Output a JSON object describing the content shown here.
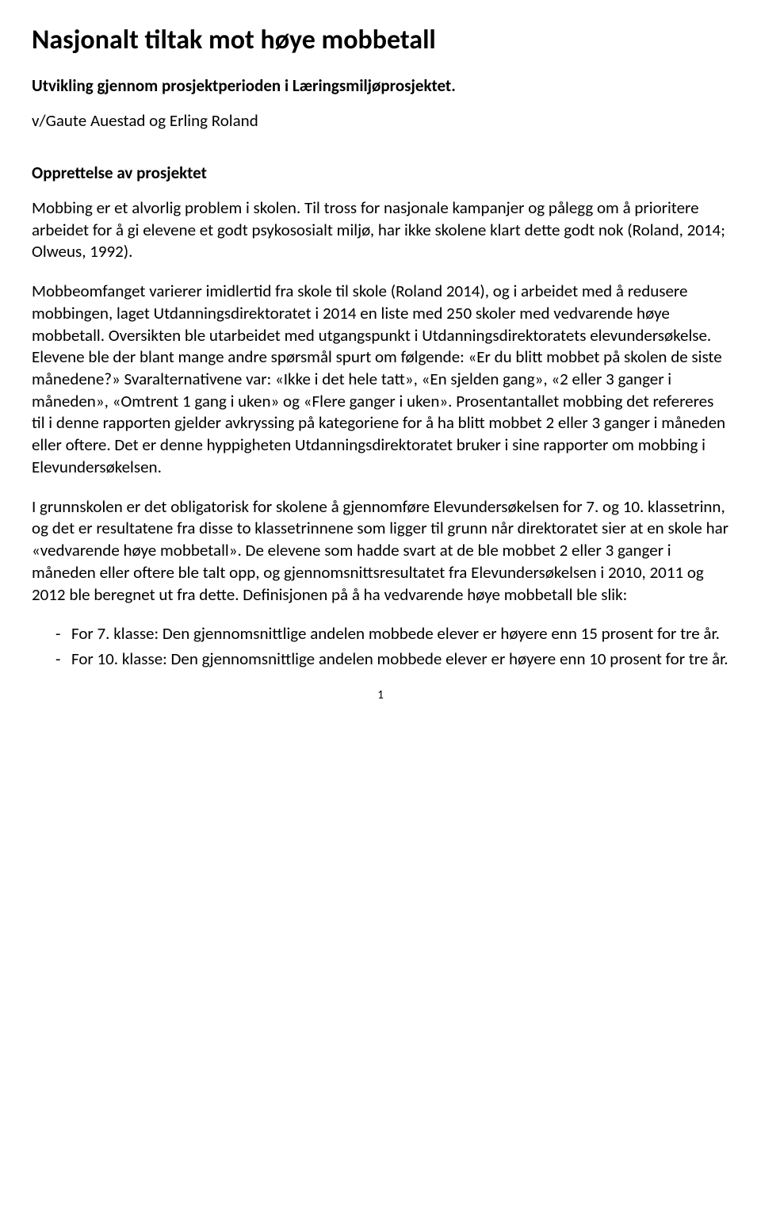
{
  "title": "Nasjonalt tiltak mot høye mobbetall",
  "subtitle": "Utvikling gjennom prosjektperioden i Læringsmiljøprosjektet.",
  "byline": "v/Gaute Auestad og Erling Roland",
  "section_heading": "Opprettelse av prosjektet",
  "para1": "Mobbing er et alvorlig problem i skolen. Til tross for nasjonale kampanjer og pålegg om å prioritere arbeidet for å gi elevene et godt psykososialt miljø, har ikke skolene klart dette godt nok (Roland, 2014; Olweus, 1992).",
  "para2": "Mobbeomfanget varierer imidlertid fra skole til skole (Roland 2014), og i arbeidet med å redusere mobbingen, laget Utdanningsdirektoratet i 2014 en liste med 250 skoler med vedvarende høye mobbetall. Oversikten ble utarbeidet med utgangspunkt i Utdanningsdirektoratets elevundersøkelse. Elevene ble der blant mange andre spørsmål spurt om følgende: «Er du blitt mobbet på skolen de siste månedene?» Svaralternativene var: «Ikke i det hele tatt», «En sjelden gang», «2 eller 3 ganger i måneden», «Omtrent 1 gang i uken» og «Flere ganger i uken». Prosentantallet mobbing det refereres til i denne rapporten gjelder avkryssing på kategoriene for å ha blitt mobbet 2 eller 3 ganger i måneden eller oftere. Det er denne hyppigheten Utdanningsdirektoratet bruker i sine rapporter om mobbing i Elevundersøkelsen.",
  "para3": "I grunnskolen er det obligatorisk for skolene å gjennomføre Elevundersøkelsen for 7. og 10. klassetrinn, og det er resultatene fra disse to klassetrinnene som ligger til grunn når direktoratet sier at en skole har «vedvarende høye mobbetall». De elevene som hadde svart at de ble mobbet 2 eller 3 ganger i måneden eller oftere ble talt opp, og gjennomsnittsresultatet fra Elevundersøkelsen i 2010, 2011 og 2012 ble beregnet ut fra dette. Definisjonen på å ha vedvarende høye mobbetall ble slik:",
  "bullets": [
    "For 7. klasse: Den gjennomsnittlige andelen mobbede elever er høyere enn 15 prosent for tre år.",
    "For 10. klasse: Den gjennomsnittlige andelen mobbede elever er høyere enn 10 prosent for tre år."
  ],
  "page_num": "1"
}
